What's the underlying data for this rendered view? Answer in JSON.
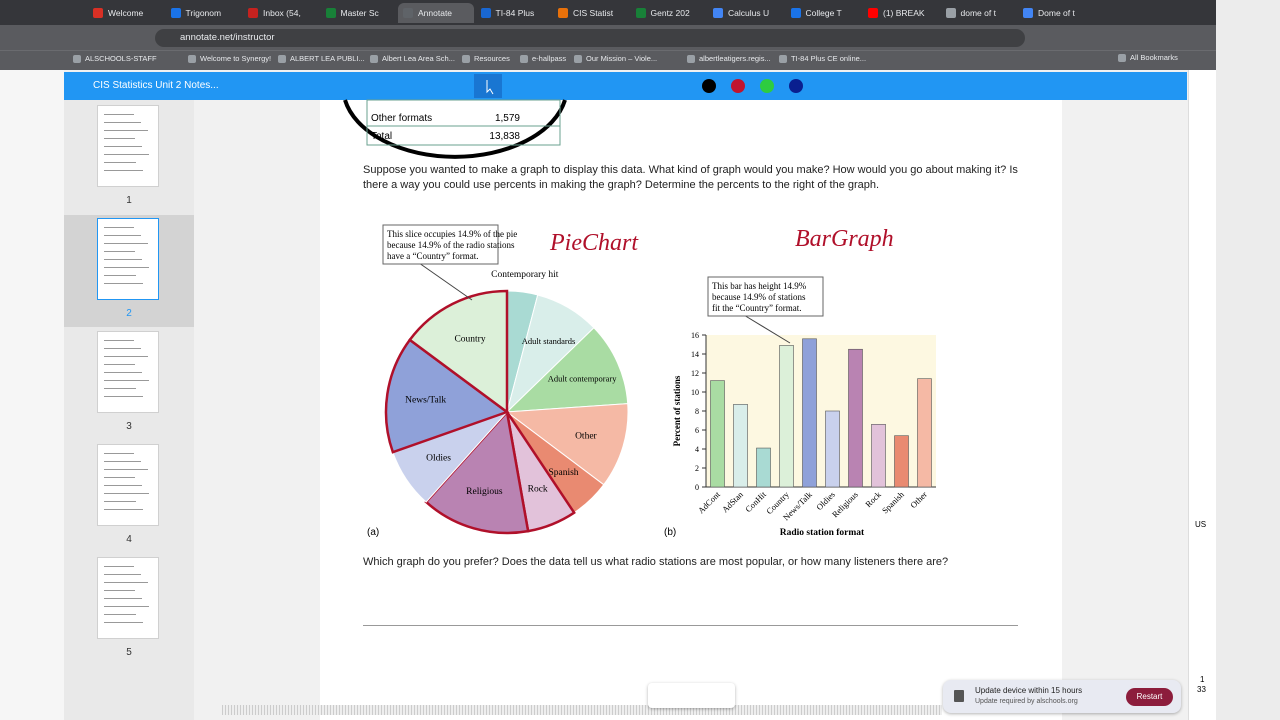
{
  "browser": {
    "tabs": [
      "Welcome",
      "Trigonom",
      "Inbox (54,",
      "Master Sc",
      "Annotate",
      "TI-84 Plus",
      "CIS Statist",
      "Gentz 202",
      "Calculus U",
      "College T",
      "(1) BREAK",
      "dome of t",
      "Dome of t"
    ],
    "url": "annotate.net/instructor",
    "bookmarks": [
      "ALSCHOOLS-STAFF",
      "Welcome to Synergy!",
      "ALBERT LEA PUBLI...",
      "Albert Lea Area Sch...",
      "Resources",
      "e-hallpass",
      "Our Mission – Viole...",
      "albertleatigers.regis...",
      "TI-84 Plus CE online..."
    ],
    "all_bookmarks": "All Bookmarks"
  },
  "app": {
    "title": "CIS Statistics Unit 2 Notes...",
    "pages": [
      1,
      2,
      3,
      4,
      5
    ]
  },
  "document": {
    "table_rows": [
      [
        "Other formats",
        "1,579"
      ],
      [
        "Total",
        "13,838"
      ]
    ],
    "question1": "Suppose you wanted to make a graph to display this data.   What kind of graph would you make?  How would you go about making it?  Is there a way you could use percents in making the graph?  Determine the percents to the right of the graph.",
    "question2": "Which graph do you prefer?  Does the data tell us what radio stations are most popular, or how many listeners there are?",
    "handwriting": [
      "PieChart",
      "BarGraph"
    ]
  },
  "chart_data": [
    {
      "type": "pie",
      "categories": [
        "Contemporary hit",
        "Adult standards",
        "Adult contemporary",
        "Other",
        "Spanish",
        "Rock",
        "Religious",
        "Oldies",
        "News/Talk",
        "Country"
      ],
      "values": [
        4.1,
        8.7,
        11.2,
        11.4,
        5.4,
        6.6,
        14.5,
        8.0,
        15.6,
        14.9
      ],
      "colors": [
        "#a9dad3",
        "#d9eeea",
        "#a9dca3",
        "#f5b9a5",
        "#e98a71",
        "#e2c2da",
        "#b983b2",
        "#c9d1ed",
        "#8fa1d9",
        "#dcf0d9"
      ],
      "callout": [
        "This slice occupies 14.9% of the pie",
        "because 14.9% of the radio stations",
        "have a “Country” format."
      ],
      "panel": "(a)"
    },
    {
      "type": "bar",
      "categories": [
        "AdCont",
        "AdStan",
        "ConHit",
        "Country",
        "News/Talk",
        "Oldies",
        "Religious",
        "Rock",
        "Spanish",
        "Other"
      ],
      "values": [
        11.2,
        8.7,
        4.1,
        14.9,
        15.6,
        8.0,
        14.5,
        6.6,
        5.4,
        11.4
      ],
      "colors": [
        "#a9dca3",
        "#d9eeea",
        "#a9dad3",
        "#dcf0d9",
        "#8fa1d9",
        "#c9d1ed",
        "#b983b2",
        "#e2c2da",
        "#e98a71",
        "#f5b9a5"
      ],
      "ylim": [
        0,
        16
      ],
      "yticks": [
        0,
        2,
        4,
        6,
        8,
        10,
        12,
        14,
        16
      ],
      "ylabel": "Percent of stations",
      "xlabel": "Radio station format",
      "callout": [
        "This bar has height 14.9%",
        "because 14.9% of stations",
        "fit the “Country” format."
      ],
      "panel": "(b)"
    }
  ],
  "notification": {
    "title": "Update device within 15 hours",
    "detail": "Update required by alschools.org",
    "button": "Restart"
  },
  "sidebar": {
    "lang": "US",
    "count_a": "1",
    "count_b": "33"
  }
}
